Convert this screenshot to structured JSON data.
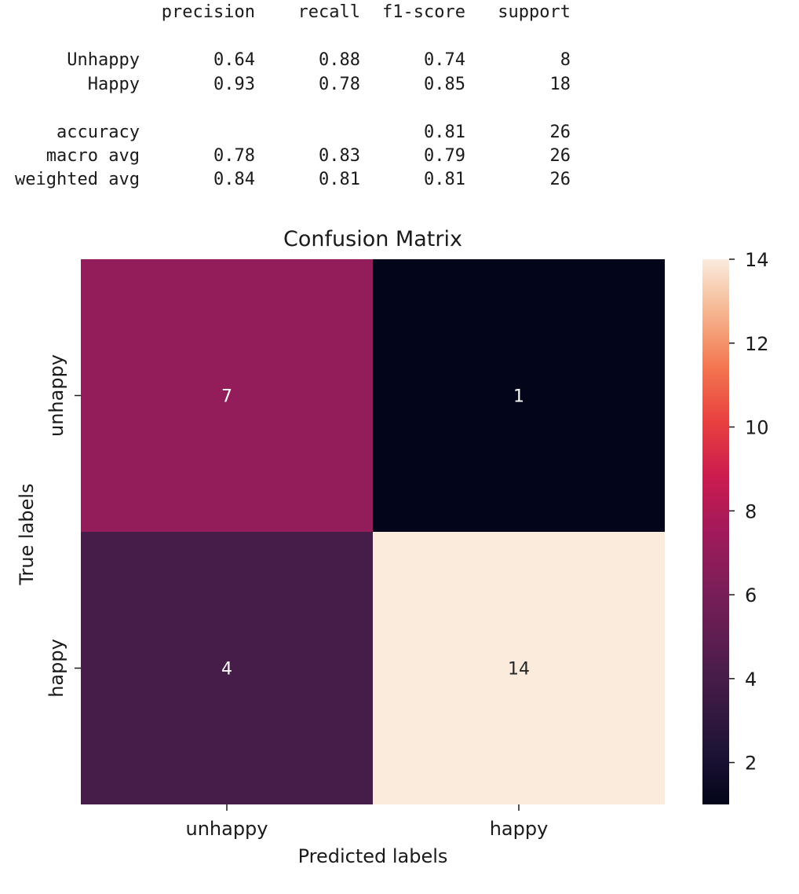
{
  "report": {
    "headers": [
      "precision",
      "recall",
      "f1-score",
      "support"
    ],
    "rows": [
      {
        "label": "Unhappy",
        "precision": "0.64",
        "recall": "0.88",
        "f1": "0.74",
        "support": "8"
      },
      {
        "label": "Happy",
        "precision": "0.93",
        "recall": "0.78",
        "f1": "0.85",
        "support": "18"
      },
      {
        "label": "accuracy",
        "precision": "",
        "recall": "",
        "f1": "0.81",
        "support": "26"
      },
      {
        "label": "macro avg",
        "precision": "0.78",
        "recall": "0.83",
        "f1": "0.79",
        "support": "26"
      },
      {
        "label": "weighted avg",
        "precision": "0.84",
        "recall": "0.81",
        "f1": "0.81",
        "support": "26"
      }
    ]
  },
  "chart_data": {
    "type": "heatmap",
    "title": "Confusion Matrix",
    "xlabel": "Predicted labels",
    "ylabel": "True labels",
    "x_categories": [
      "unhappy",
      "happy"
    ],
    "y_categories": [
      "unhappy",
      "happy"
    ],
    "values": [
      [
        7,
        1
      ],
      [
        4,
        14
      ]
    ],
    "colorbar": {
      "range": [
        1,
        14
      ],
      "ticks": [
        2,
        4,
        6,
        8,
        10,
        12,
        14
      ],
      "colormap": "rocket"
    }
  }
}
